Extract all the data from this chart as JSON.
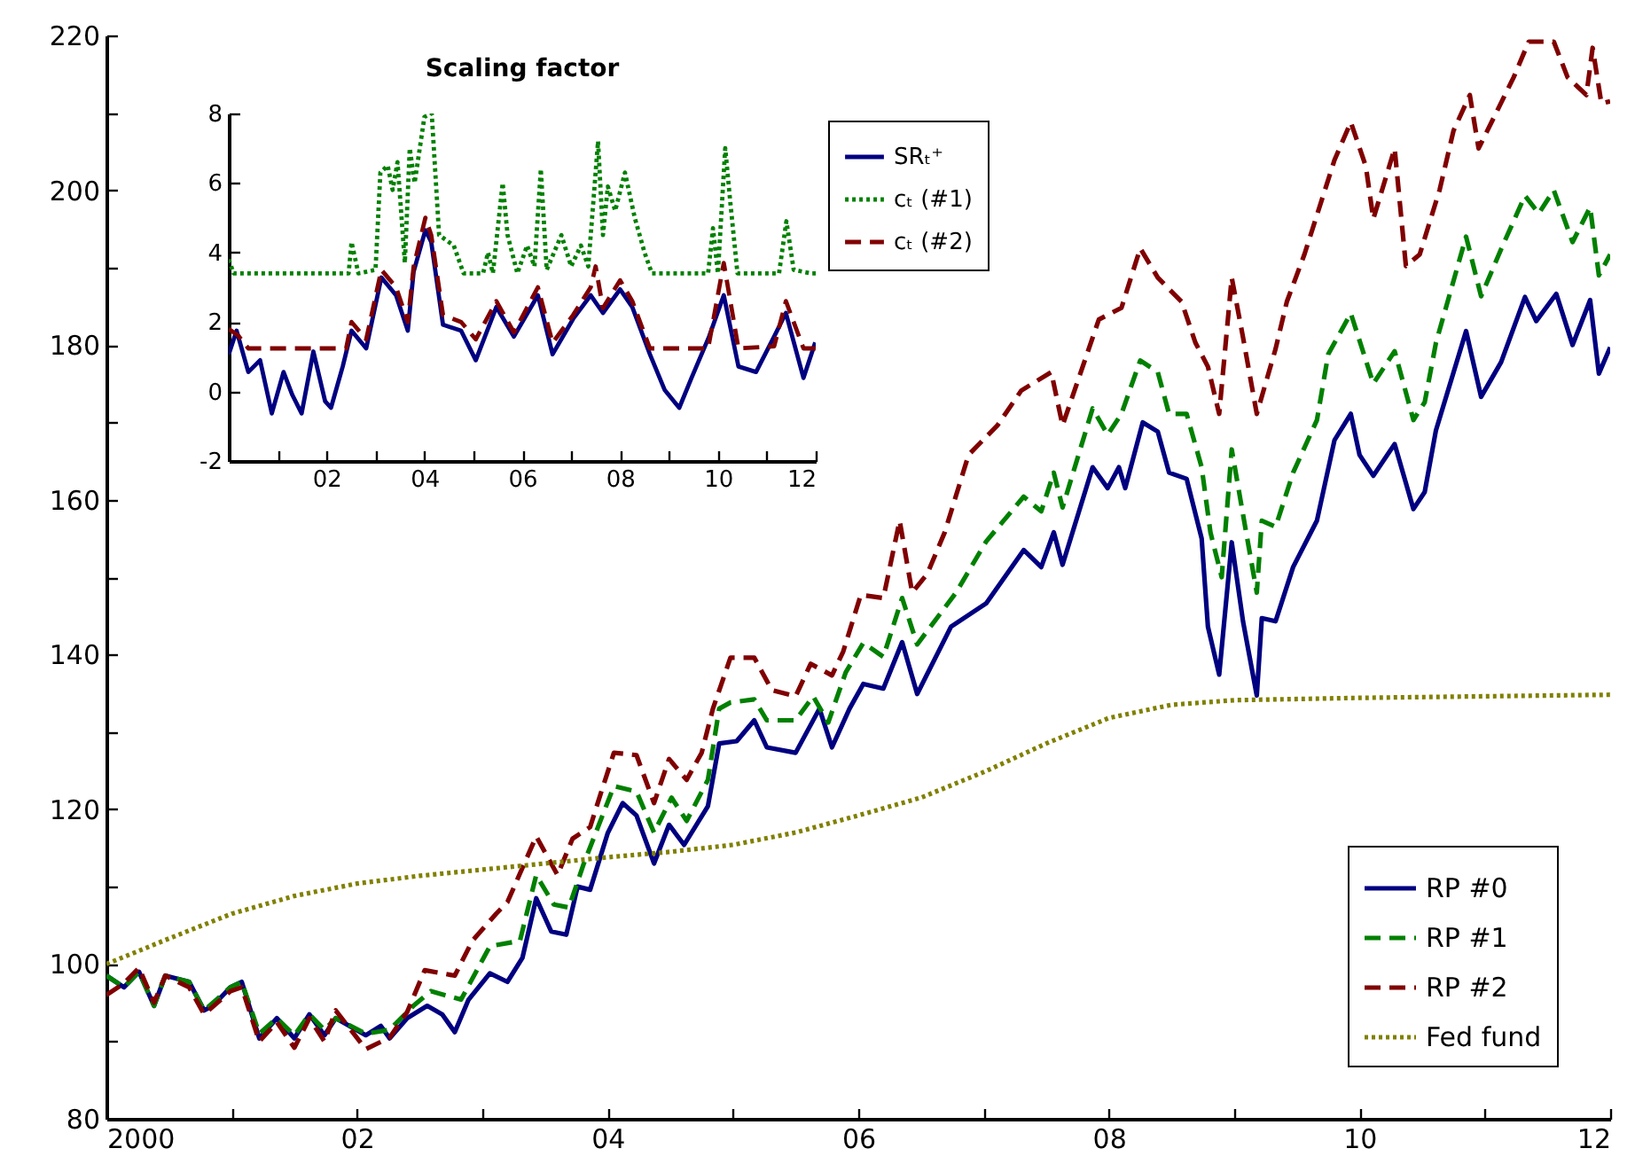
{
  "chart_data": [
    {
      "type": "line",
      "xlim": [
        2000,
        2012
      ],
      "ylim": [
        80,
        220
      ],
      "xticks": [
        {
          "value": 2000,
          "label": "2000"
        },
        {
          "value": 2001,
          "label": null
        },
        {
          "value": 2002,
          "label": "02"
        },
        {
          "value": 2003,
          "label": null
        },
        {
          "value": 2004,
          "label": "04"
        },
        {
          "value": 2005,
          "label": null
        },
        {
          "value": 2006,
          "label": "06"
        },
        {
          "value": 2007,
          "label": null
        },
        {
          "value": 2008,
          "label": "08"
        },
        {
          "value": 2009,
          "label": null
        },
        {
          "value": 2010,
          "label": "10"
        },
        {
          "value": 2011,
          "label": null
        },
        {
          "value": 2012,
          "label": "12"
        }
      ],
      "yticks": [
        80,
        {
          "value": 90,
          "label": null
        },
        100,
        {
          "value": 110,
          "label": null
        },
        120,
        {
          "value": 130,
          "label": null
        },
        140,
        {
          "value": 150,
          "label": null
        },
        160,
        {
          "value": 170,
          "label": null
        },
        180,
        {
          "value": 190,
          "label": null
        },
        200,
        {
          "value": 210,
          "label": null
        },
        220
      ],
      "legend": "bottom right",
      "series": [
        {
          "name": "RP #0",
          "color": "#000080",
          "line_style": "solid",
          "x": [
            2000,
            2000.14,
            2000.26,
            2000.38,
            2000.47,
            2000.66,
            2000.78,
            2000.85,
            2000.99,
            2001.08,
            2001.22,
            2001.36,
            2001.5,
            2001.62,
            2001.74,
            2001.83,
            2002.07,
            2002.19,
            2002.26,
            2002.4,
            2002.56,
            2002.68,
            2002.78,
            2002.89,
            2003.06,
            2003.2,
            2003.32,
            2003.43,
            2003.55,
            2003.67,
            2003.76,
            2003.86,
            2004,
            2004.12,
            2004.23,
            2004.37,
            2004.49,
            2004.61,
            2004.8,
            2004.89,
            2005.03,
            2005.17,
            2005.27,
            2005.5,
            2005.69,
            2005.79,
            2005.93,
            2006.04,
            2006.2,
            2006.35,
            2006.47,
            2006.74,
            2007.02,
            2007.32,
            2007.46,
            2007.56,
            2007.63,
            2007.87,
            2007.99,
            2008.08,
            2008.13,
            2008.27,
            2008.39,
            2008.48,
            2008.62,
            2008.74,
            2008.79,
            2008.88,
            2008.98,
            2009.07,
            2009.18,
            2009.22,
            2009.33,
            2009.47,
            2009.66,
            2009.8,
            2009.93,
            2010,
            2010.11,
            2010.28,
            2010.43,
            2010.52,
            2010.61,
            2010.85,
            2010.97,
            2011.13,
            2011.32,
            2011.41,
            2011.57,
            2011.7,
            2011.84,
            2011.91,
            2012
          ],
          "values": [
            98.5,
            97,
            99,
            94.6,
            98.5,
            97.7,
            94,
            94.6,
            97,
            97.7,
            90.4,
            93,
            90.4,
            93.5,
            90.8,
            93,
            90.8,
            92,
            90.4,
            93,
            94.6,
            93.5,
            91.2,
            95.4,
            98.8,
            97.7,
            100.8,
            108.5,
            104.2,
            103.8,
            110,
            109.6,
            116.9,
            120.8,
            119.2,
            113,
            118,
            115.4,
            120.4,
            128.5,
            128.8,
            131.5,
            128,
            127.3,
            133,
            128,
            133,
            136.2,
            135.6,
            141.6,
            134.9,
            143.6,
            146.6,
            153.5,
            151.3,
            155.8,
            151.6,
            164.2,
            161.5,
            164.2,
            161.5,
            170,
            168.8,
            163.5,
            162.7,
            155,
            143.6,
            137.4,
            154.5,
            144.3,
            134.7,
            144.7,
            144.3,
            151.3,
            157.3,
            167.7,
            171.1,
            165.8,
            163.1,
            167.2,
            158.8,
            161,
            169,
            181.8,
            173.3,
            177.8,
            186.2,
            183.1,
            186.6,
            180,
            185.8,
            176.3,
            179.7
          ]
        },
        {
          "name": "RP #1",
          "color": "#008000",
          "line_style": "dashed",
          "x": [
            2000,
            2000.14,
            2000.26,
            2000.38,
            2000.47,
            2000.66,
            2000.78,
            2000.99,
            2001.08,
            2001.22,
            2001.36,
            2001.5,
            2001.62,
            2001.74,
            2001.83,
            2002.07,
            2002.26,
            2002.45,
            2002.59,
            2002.83,
            2003.06,
            2003.3,
            2003.43,
            2003.57,
            2003.69,
            2003.81,
            2004.05,
            2004.23,
            2004.37,
            2004.51,
            2004.63,
            2004.8,
            2004.89,
            2004.98,
            2005.17,
            2005.27,
            2005.5,
            2005.64,
            2005.76,
            2005.9,
            2006.04,
            2006.2,
            2006.35,
            2006.47,
            2006.78,
            2007.02,
            2007.32,
            2007.46,
            2007.56,
            2007.63,
            2007.87,
            2007.99,
            2008.1,
            2008.25,
            2008.39,
            2008.48,
            2008.62,
            2008.74,
            2008.81,
            2008.9,
            2008.98,
            2009.07,
            2009.18,
            2009.22,
            2009.33,
            2009.47,
            2009.66,
            2009.75,
            2009.93,
            2010.11,
            2010.28,
            2010.43,
            2010.52,
            2010.61,
            2010.85,
            2010.97,
            2011.13,
            2011.32,
            2011.43,
            2011.55,
            2011.7,
            2011.84,
            2011.91,
            2012
          ],
          "values": [
            98.5,
            97,
            99,
            94.6,
            98.5,
            97.7,
            94,
            97,
            97.7,
            91,
            93,
            90.8,
            93.5,
            91.5,
            93,
            91,
            91.5,
            94.6,
            96.5,
            95.4,
            102.3,
            103,
            111.5,
            107.7,
            107.3,
            113,
            123,
            122.3,
            117,
            121.5,
            118.5,
            123.8,
            133,
            133.8,
            134.2,
            131.5,
            131.5,
            134.6,
            131.2,
            137.7,
            141.5,
            139.7,
            147.3,
            141.3,
            148,
            154.6,
            160.4,
            158.5,
            163.5,
            159,
            171.8,
            168.4,
            171.1,
            178,
            176.5,
            171.1,
            171.1,
            164.2,
            155.8,
            150,
            166.5,
            158.1,
            148,
            157.3,
            156.5,
            163.5,
            170.3,
            178.8,
            184.1,
            175,
            179.2,
            170.3,
            172.6,
            180.3,
            194,
            186.3,
            192.4,
            199.3,
            197,
            200,
            193.3,
            197.8,
            189,
            191.7
          ]
        },
        {
          "name": "RP #2",
          "color": "#800000",
          "line_style": "dashed",
          "x": [
            2000,
            2000.14,
            2000.26,
            2000.38,
            2000.47,
            2000.66,
            2000.78,
            2000.99,
            2001.08,
            2001.22,
            2001.36,
            2001.5,
            2001.62,
            2001.74,
            2001.83,
            2002.07,
            2002.26,
            2002.4,
            2002.54,
            2002.78,
            2002.92,
            2003.11,
            2003.2,
            2003.43,
            2003.6,
            2003.72,
            2003.86,
            2003.95,
            2004.05,
            2004.23,
            2004.37,
            2004.49,
            2004.63,
            2004.75,
            2004.84,
            2004.98,
            2005.17,
            2005.31,
            2005.5,
            2005.62,
            2005.79,
            2005.88,
            2006.02,
            2006.2,
            2006.33,
            2006.43,
            2006.55,
            2006.69,
            2006.88,
            2007.11,
            2007.3,
            2007.54,
            2007.63,
            2007.92,
            2008.1,
            2008.25,
            2008.39,
            2008.58,
            2008.69,
            2008.79,
            2008.88,
            2008.98,
            2009.07,
            2009.18,
            2009.33,
            2009.42,
            2009.56,
            2009.68,
            2009.8,
            2009.93,
            2010.05,
            2010.11,
            2010.28,
            2010.37,
            2010.48,
            2010.64,
            2010.75,
            2010.88,
            2010.95,
            2011.09,
            2011.23,
            2011.35,
            2011.55,
            2011.66,
            2011.81,
            2011.86,
            2011.93,
            2012
          ],
          "values": [
            96,
            97.5,
            99.5,
            95,
            98.5,
            97,
            93.5,
            96.5,
            97,
            90,
            92.5,
            89.2,
            93,
            90,
            94,
            89,
            90.5,
            93.8,
            99.2,
            98.5,
            103,
            106.5,
            108,
            116.5,
            111.5,
            116.2,
            117.7,
            122.3,
            127.3,
            127,
            120.8,
            126.5,
            123.8,
            127.3,
            133,
            139.6,
            139.6,
            135.4,
            134.6,
            138.8,
            137.3,
            140.4,
            147.7,
            147.3,
            157.3,
            148,
            150.4,
            155.8,
            165.8,
            169.6,
            174.1,
            176.5,
            169.6,
            183.3,
            184.8,
            192.5,
            188.7,
            185.6,
            180.3,
            177.2,
            171.1,
            188.7,
            181,
            171.1,
            179.5,
            185.6,
            191.7,
            197.8,
            203.9,
            208.8,
            203.1,
            196.3,
            205.4,
            190.2,
            191.7,
            200.1,
            207.7,
            212.3,
            205.4,
            210,
            214.6,
            219.2,
            219.2,
            214.6,
            212.3,
            218.4,
            211.2,
            211.5
          ]
        },
        {
          "name": "Fed fund",
          "color": "#808000",
          "line_style": "dotted",
          "x": [
            2000,
            2000.5,
            2001,
            2001.5,
            2002,
            2002.5,
            2003,
            2003.5,
            2004,
            2004.5,
            2005,
            2005.5,
            2006,
            2006.5,
            2007,
            2007.5,
            2008,
            2008.5,
            2009,
            2010,
            2011,
            2012
          ],
          "values": [
            100,
            103.3,
            106.5,
            108.8,
            110.4,
            111.4,
            112.2,
            113,
            113.8,
            114.5,
            115.4,
            117,
            119.2,
            121.5,
            124.8,
            128.5,
            131.8,
            133.5,
            134.1,
            134.4,
            134.6,
            134.8
          ]
        }
      ]
    },
    {
      "type": "line",
      "title": "Scaling factor",
      "xlim": [
        2000,
        2012
      ],
      "ylim": [
        -2,
        8
      ],
      "xticks": [
        {
          "value": 2001,
          "label": null
        },
        {
          "value": 2002,
          "label": "02"
        },
        {
          "value": 2003,
          "label": null
        },
        {
          "value": 2004,
          "label": "04"
        },
        {
          "value": 2005,
          "label": null
        },
        {
          "value": 2006,
          "label": "06"
        },
        {
          "value": 2007,
          "label": null
        },
        {
          "value": 2008,
          "label": "08"
        },
        {
          "value": 2009,
          "label": null
        },
        {
          "value": 2010,
          "label": "10"
        },
        {
          "value": 2011,
          "label": null
        },
        {
          "value": 2012,
          "label": "12"
        }
      ],
      "yticks": [
        -2,
        0,
        2,
        4,
        6,
        8
      ],
      "legend": "top right",
      "series": [
        {
          "name": "SRₜ⁺",
          "color": "#000080",
          "line_style": "solid",
          "x": [
            2000,
            2000.16,
            2000.4,
            2000.64,
            2000.88,
            2001.12,
            2001.3,
            2001.49,
            2001.73,
            2001.97,
            2002.09,
            2002.33,
            2002.51,
            2002.81,
            2003.12,
            2003.42,
            2003.66,
            2003.78,
            2004.02,
            2004.14,
            2004.38,
            2004.75,
            2005.05,
            2005.47,
            2005.83,
            2006.32,
            2006.62,
            2007.04,
            2007.4,
            2007.65,
            2008,
            2008.25,
            2008.61,
            2008.91,
            2009.21,
            2009.46,
            2009.82,
            2010.12,
            2010.42,
            2010.78,
            2011.15,
            2011.39,
            2011.75,
            2011.99
          ],
          "values": [
            1.07,
            1.75,
            0.56,
            0.9,
            -0.63,
            0.56,
            -0.1,
            -0.63,
            1.15,
            -0.28,
            -0.47,
            0.72,
            1.75,
            1.24,
            3.28,
            2.77,
            1.75,
            3.45,
            4.64,
            4.3,
            1.92,
            1.75,
            0.9,
            2.43,
            1.58,
            2.77,
            1.07,
            2.09,
            2.77,
            2.26,
            2.94,
            2.43,
            1.07,
            0.05,
            -0.47,
            0.39,
            1.58,
            2.77,
            0.72,
            0.56,
            1.58,
            2.26,
            0.39,
            1.41
          ]
        },
        {
          "name": "cₜ (#1)",
          "color": "#008000",
          "line_style": "dotted",
          "x": [
            2000,
            2000.1,
            2002.45,
            2002.51,
            2002.65,
            2003,
            2003.1,
            2003.25,
            2003.35,
            2003.45,
            2003.6,
            2003.7,
            2003.8,
            2004,
            2004.15,
            2004.3,
            2004.6,
            2004.8,
            2005.2,
            2005.3,
            2005.4,
            2005.6,
            2005.7,
            2005.9,
            2006.1,
            2006.25,
            2006.38,
            2006.5,
            2006.8,
            2007,
            2007.2,
            2007.35,
            2007.55,
            2007.65,
            2007.75,
            2007.9,
            2008.1,
            2008.3,
            2008.5,
            2008.65,
            2009.8,
            2009.9,
            2010,
            2010.15,
            2010.25,
            2010.4,
            2011.25,
            2011.4,
            2011.55,
            2011.9,
            2012
          ],
          "values": [
            3.8,
            3.4,
            3.4,
            4.3,
            3.4,
            3.5,
            6.3,
            6.5,
            5.8,
            6.6,
            3.7,
            7,
            6,
            7.9,
            8,
            4.5,
            4.2,
            3.4,
            3.4,
            4,
            3.4,
            6,
            4.5,
            3.4,
            4.2,
            3.6,
            6.4,
            3.5,
            4.5,
            3.6,
            4.2,
            3.6,
            7.2,
            4.5,
            5.9,
            5.2,
            6.3,
            5,
            4,
            3.4,
            3.4,
            4.7,
            3.4,
            7,
            5.5,
            3.4,
            3.4,
            4.9,
            3.5,
            3.4,
            3.4
          ]
        },
        {
          "name": "cₜ (#2)",
          "color": "#800000",
          "line_style": "dashed",
          "x": [
            2000,
            2000.2,
            2000.4,
            2002.4,
            2002.51,
            2002.81,
            2003.12,
            2003.42,
            2003.66,
            2003.78,
            2004.02,
            2004.14,
            2004.38,
            2004.75,
            2005.05,
            2005.47,
            2005.83,
            2006.32,
            2006.62,
            2007.04,
            2007.4,
            2007.5,
            2007.65,
            2008,
            2008.25,
            2008.61,
            2009.8,
            2010.12,
            2010.42,
            2011.15,
            2011.39,
            2011.75,
            2012
          ],
          "values": [
            1.8,
            1.6,
            1.24,
            1.24,
            2,
            1.5,
            3.5,
            3,
            2,
            3.6,
            5,
            4.5,
            2.2,
            2,
            1.5,
            2.6,
            1.7,
            3,
            1.4,
            2.2,
            3,
            3.6,
            2.4,
            3.2,
            2.6,
            1.24,
            1.24,
            3.7,
            1.24,
            1.3,
            2.6,
            1.24,
            1.24
          ]
        }
      ]
    }
  ]
}
